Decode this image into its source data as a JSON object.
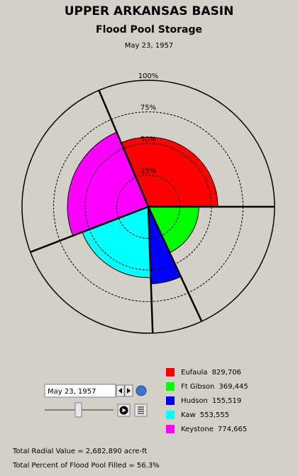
{
  "chart_data": {
    "type": "polar-area",
    "title": "UPPER ARKANSAS BASIN",
    "subtitle": "Flood Pool Storage",
    "date": "May 23, 1957",
    "rlim": [
      0,
      100
    ],
    "rticks": [
      {
        "value": 25,
        "label": "25%"
      },
      {
        "value": 50,
        "label": "50%"
      },
      {
        "value": 75,
        "label": "75%"
      },
      {
        "value": 100,
        "label": "100%"
      }
    ],
    "start_angle": -23,
    "series": [
      {
        "name": "Eufaula",
        "color": "#ff0000",
        "values": [
          829706
        ],
        "value_labels": [
          "829,706"
        ],
        "percent_filled": 55,
        "sweep": 113
      },
      {
        "name": "Ft Gibson",
        "color": "#00ff00",
        "values": [
          369445
        ],
        "value_labels": [
          "369,445"
        ],
        "percent_filled": 40,
        "sweep": 65
      },
      {
        "name": "Hudson",
        "color": "#0000ff",
        "values": [
          155519
        ],
        "value_labels": [
          "155,519"
        ],
        "percent_filled": 61,
        "sweep": 23
      },
      {
        "name": "Kaw",
        "color": "#00ffff",
        "values": [
          553555
        ],
        "value_labels": [
          "553,555"
        ],
        "percent_filled": 56,
        "sweep": 71
      },
      {
        "name": "Keystone",
        "color": "#ff00ff",
        "values": [
          774665
        ],
        "value_labels": [
          "774,665"
        ],
        "percent_filled": 64,
        "sweep": 88
      }
    ],
    "footer": [
      "Total Radial Value =  2,682,890 acre-ft",
      "Total Percent of Flood Pool Filled =  56.3%"
    ]
  }
}
